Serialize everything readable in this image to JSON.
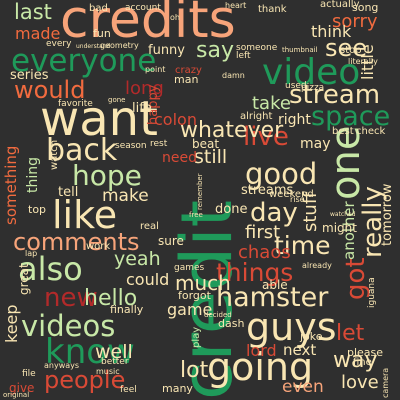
{
  "words": {
    "credits": "credits",
    "credit": "credit",
    "video": "video",
    "everyone": "everyone",
    "want": "want",
    "would": "would",
    "stream": "stream",
    "space": "space",
    "see": "see",
    "sorry": "sorry",
    "last": "last",
    "made": "made",
    "series": "series",
    "one": "one",
    "really": "really",
    "back": "back",
    "live": "live",
    "good": "good",
    "hope": "hope",
    "like": "like",
    "comments": "comments",
    "also": "also",
    "new": "new",
    "hello": "hello",
    "videos": "videos",
    "know": "know",
    "people": "people",
    "guys": "guys",
    "going": "going",
    "hamster": "hamster",
    "things": "things",
    "got": "got",
    "day": "day",
    "time": "time",
    "whatever": "whatever",
    "say": "say",
    "long": "long",
    "take": "take",
    "first": "first",
    "chaos": "chaos",
    "stuff": "stuff",
    "still": "still",
    "make": "make",
    "yeah": "yeah",
    "much": "much",
    "lot": "lot",
    "well": "well",
    "lord": "lord",
    "next": "next",
    "way": "way",
    "let": "let",
    "love": "love",
    "even": "even",
    "keep": "keep",
    "game": "game",
    "could": "could",
    "think": "think",
    "little": "little",
    "colon": "colon",
    "need": "need",
    "tell": "tell",
    "something": "something",
    "happy": "happy",
    "right": "right",
    "may": "may",
    "thing": "thing",
    "another": "another",
    "tomorrow": "tomorrow",
    "streams": "streams",
    "done": "done",
    "sure": "sure",
    "able": "able",
    "forgot": "forgot",
    "funny": "funny",
    "life": "life",
    "great": "great",
    "give": "give",
    "many": "many",
    "finally": "finally",
    "play": "play",
    "joke": "joke",
    "please": "please",
    "dash": "dash",
    "beat": "beat",
    "alright": "alright",
    "best": "best",
    "check": "check",
    "man": "man",
    "fun": "fun",
    "bad": "bad",
    "top": "top",
    "watch": "watch",
    "might": "might",
    "weekend": "weekend",
    "favorite": "favorite",
    "thank": "thank",
    "song": "song",
    "actually": "actually",
    "stop": "stop",
    "fine": "fine",
    "account": "account",
    "heart": "heart",
    "crazy": "crazy",
    "rest": "rest",
    "work": "work",
    "real": "real",
    "games": "games",
    "season": "season",
    "pizza": "pizza",
    "used": "used",
    "every": "every",
    "someone": "someone",
    "left": "left",
    "decided": "decided",
    "feel": "feel",
    "file": "file",
    "better": "better",
    "music": "music",
    "iguana": "iguana",
    "already": "already",
    "gone": "gone",
    "camera": "camera",
    "original": "original",
    "geometry": "geometry",
    "understand": "understand",
    "thumbnail": "thumbnail",
    "literally": "literally",
    "point": "point",
    "remember": "remember",
    "damn": "damn",
    "free": "free",
    "lap": "lap",
    "oh": "oh",
    "watched": "watched",
    "anyways": "anyways",
    "rise": "rise"
  }
}
